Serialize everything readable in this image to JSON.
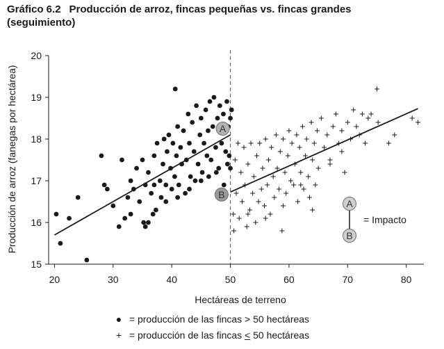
{
  "title": {
    "number": "Gráfico 6.2",
    "text": "Producción de arroz, fincas pequeñas vs. fincas grandes",
    "line2": "(seguimiento)"
  },
  "legend": {
    "large_prefix": "= producción de las fincas",
    "large_cond": "> 50 hectáreas",
    "small_prefix": "= producción de las fincas",
    "small_op": "<",
    "small_value": "50 hectáreas"
  },
  "chart_data": {
    "type": "scatter",
    "xlabel": "Hectáreas de terreno",
    "ylabel": "Producción de arroz (fanegas por hectárea)",
    "xlim": [
      19,
      83
    ],
    "ylim": [
      15,
      20
    ],
    "xticks": [
      20,
      30,
      40,
      50,
      60,
      70,
      80
    ],
    "yticks": [
      15,
      16,
      17,
      18,
      19,
      20
    ],
    "threshold_x": 50,
    "dot_color": "#1a1a1a",
    "point_A": {
      "label": "A",
      "x": 48.7,
      "y": 18.25
    },
    "point_B": {
      "label": "B",
      "x": 48.5,
      "y": 16.67
    },
    "impact_legend": {
      "label_top": "A",
      "label_bottom": "B",
      "text": "= Impacto"
    },
    "fit_left": {
      "x": [
        20,
        50
      ],
      "y": [
        15.7,
        18.1
      ]
    },
    "fit_right": {
      "x": [
        50,
        82
      ],
      "y": [
        16.73,
        18.73
      ]
    },
    "series": [
      {
        "marker": "dot",
        "points": [
          [
            20.3,
            16.2
          ],
          [
            21,
            15.5
          ],
          [
            22.5,
            16.1
          ],
          [
            24,
            16.6
          ],
          [
            25.5,
            15.1
          ],
          [
            28,
            17.6
          ],
          [
            28.5,
            16.9
          ],
          [
            29,
            16.8
          ],
          [
            30,
            16.4
          ],
          [
            31,
            15.9
          ],
          [
            31.5,
            17.5
          ],
          [
            32,
            16.1
          ],
          [
            32.5,
            16.6
          ],
          [
            33,
            17
          ],
          [
            33.5,
            16.8
          ],
          [
            34,
            17.3
          ],
          [
            34.5,
            16.5
          ],
          [
            35,
            17.5
          ],
          [
            35.2,
            16
          ],
          [
            35.5,
            16.9
          ],
          [
            35.5,
            15.9
          ],
          [
            36,
            17.2
          ],
          [
            36.5,
            16.7
          ],
          [
            36.8,
            16.2
          ],
          [
            37,
            17.6
          ],
          [
            37.3,
            16.3
          ],
          [
            37.5,
            17.9
          ],
          [
            38,
            17
          ],
          [
            38.2,
            16.6
          ],
          [
            38.5,
            17.4
          ],
          [
            38.7,
            18
          ],
          [
            39,
            16.9
          ],
          [
            39.2,
            17.7
          ],
          [
            39.5,
            18.1
          ],
          [
            39.8,
            17.3
          ],
          [
            40,
            16.8
          ],
          [
            40.2,
            17.9
          ],
          [
            40.5,
            17.1
          ],
          [
            40.6,
            19.2
          ],
          [
            40.8,
            17.6
          ],
          [
            41,
            18.3
          ],
          [
            41.2,
            16.9
          ],
          [
            41.5,
            17.8
          ],
          [
            41.7,
            17.4
          ],
          [
            42,
            18.2
          ],
          [
            42.3,
            16.7
          ],
          [
            42.5,
            17.5
          ],
          [
            42.8,
            18.6
          ],
          [
            43,
            17.9
          ],
          [
            43.2,
            17.1
          ],
          [
            43.5,
            18.4
          ],
          [
            43.8,
            17.7
          ],
          [
            44,
            17
          ],
          [
            44.2,
            18.8
          ],
          [
            44.5,
            17.4
          ],
          [
            44.8,
            18.1
          ],
          [
            45,
            18.5
          ],
          [
            45.2,
            17.2
          ],
          [
            45.5,
            17.9
          ],
          [
            45.8,
            18.7
          ],
          [
            46,
            17.6
          ],
          [
            46.2,
            18.2
          ],
          [
            46.5,
            18.9
          ],
          [
            46.7,
            17.5
          ],
          [
            47,
            18.3
          ],
          [
            47.2,
            19
          ],
          [
            47.5,
            17.8
          ],
          [
            47.8,
            18.5
          ],
          [
            48,
            17.3
          ],
          [
            48.2,
            18.8
          ],
          [
            48.5,
            17.9
          ],
          [
            48.8,
            18.6
          ],
          [
            49,
            18.2
          ],
          [
            49.2,
            17.7
          ],
          [
            49.4,
            18.9
          ],
          [
            49.5,
            17.4
          ],
          [
            49.6,
            18.3
          ],
          [
            49.8,
            17.6
          ],
          [
            50,
            18.5
          ],
          [
            50,
            17.3
          ],
          [
            50.2,
            18.7
          ],
          [
            33,
            16.2
          ],
          [
            36,
            16
          ],
          [
            37,
            16.9
          ],
          [
            39,
            16.5
          ],
          [
            41,
            16.6
          ],
          [
            43,
            16.8
          ],
          [
            45,
            17
          ],
          [
            46.3,
            17.1
          ],
          [
            47.6,
            17.2
          ],
          [
            48.9,
            16.9
          ]
        ]
      },
      {
        "marker": "plus",
        "points": [
          [
            50.5,
            16.2
          ],
          [
            50.6,
            15.8
          ],
          [
            50.8,
            17.5
          ],
          [
            51,
            16.7
          ],
          [
            51.3,
            17.9
          ],
          [
            51.5,
            16.1
          ],
          [
            51.8,
            17.2
          ],
          [
            52,
            16.5
          ],
          [
            52.3,
            17.8
          ],
          [
            52.5,
            16.9
          ],
          [
            52.8,
            15.9
          ],
          [
            53,
            17.4
          ],
          [
            53.3,
            16.3
          ],
          [
            53.5,
            17.9
          ],
          [
            53.8,
            16.7
          ],
          [
            54,
            17.1
          ],
          [
            54.3,
            16
          ],
          [
            54.5,
            17.6
          ],
          [
            54.8,
            16.5
          ],
          [
            55,
            17.9
          ],
          [
            55.3,
            16.8
          ],
          [
            55.5,
            17.3
          ],
          [
            55.8,
            16.4
          ],
          [
            56,
            18
          ],
          [
            56.3,
            16.9
          ],
          [
            56.5,
            17.5
          ],
          [
            56.8,
            16.2
          ],
          [
            57,
            17.8
          ],
          [
            57.3,
            17.1
          ],
          [
            57.5,
            16.6
          ],
          [
            57.8,
            18.1
          ],
          [
            58,
            17.3
          ],
          [
            58.3,
            16.8
          ],
          [
            58.5,
            17.7
          ],
          [
            58.8,
            15.8
          ],
          [
            59,
            18
          ],
          [
            59.3,
            17.2
          ],
          [
            59.5,
            16.7
          ],
          [
            59.8,
            17.6
          ],
          [
            60,
            18.2
          ],
          [
            60.3,
            17
          ],
          [
            60.5,
            17.9
          ],
          [
            60.8,
            16.9
          ],
          [
            61,
            17.4
          ],
          [
            61.3,
            18.1
          ],
          [
            61.5,
            16.5
          ],
          [
            61.8,
            17.8
          ],
          [
            62,
            17.2
          ],
          [
            62.3,
            18.3
          ],
          [
            62.5,
            16.8
          ],
          [
            62.8,
            17.6
          ],
          [
            63,
            18
          ],
          [
            63.3,
            17.1
          ],
          [
            63.5,
            16.6
          ],
          [
            63.8,
            18.4
          ],
          [
            64,
            17.5
          ],
          [
            64.3,
            17.9
          ],
          [
            64.5,
            16.9
          ],
          [
            64.8,
            18.2
          ],
          [
            65,
            17.3
          ],
          [
            65.5,
            18.5
          ],
          [
            66,
            17.8
          ],
          [
            66.5,
            18.1
          ],
          [
            67,
            17.5
          ],
          [
            67.5,
            18.3
          ],
          [
            68,
            18.6
          ],
          [
            68.5,
            17.9
          ],
          [
            69,
            18.2
          ],
          [
            69.5,
            17.2
          ],
          [
            70,
            18.4
          ],
          [
            70.5,
            18
          ],
          [
            71,
            18.7
          ],
          [
            71.5,
            18.3
          ],
          [
            72,
            18.1
          ],
          [
            72.5,
            18.6
          ],
          [
            73,
            17.9
          ],
          [
            73.5,
            18.5
          ],
          [
            74,
            18.6
          ],
          [
            75,
            19.2
          ],
          [
            75.2,
            18.4
          ],
          [
            77,
            17.9
          ],
          [
            78,
            18.1
          ],
          [
            81,
            18.5
          ],
          [
            82,
            18.4
          ],
          [
            53,
            16.2
          ],
          [
            56,
            16.1
          ],
          [
            59,
            16.4
          ],
          [
            62,
            16.9
          ],
          [
            64,
            16.3
          ],
          [
            67,
            17.4
          ],
          [
            69,
            17.7
          ]
        ]
      }
    ]
  }
}
